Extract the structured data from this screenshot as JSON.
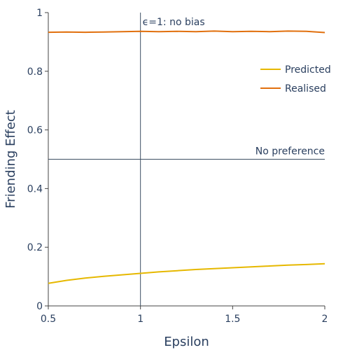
{
  "chart_data": {
    "type": "line",
    "xlabel": "Epsilon",
    "ylabel": "Friending Effect",
    "xlim": [
      0.5,
      2
    ],
    "ylim": [
      0,
      1
    ],
    "x_ticks": [
      "0.5",
      "1",
      "1.5",
      "2"
    ],
    "y_ticks": [
      "0",
      "0.2",
      "0.4",
      "0.6",
      "0.8",
      "1"
    ],
    "grid": false,
    "legend_position": "top-right",
    "series": [
      {
        "name": "Predicted",
        "color": "#e6b800",
        "x": [
          0.5,
          0.6,
          0.7,
          0.8,
          0.9,
          1.0,
          1.1,
          1.2,
          1.3,
          1.4,
          1.5,
          1.6,
          1.7,
          1.8,
          1.9,
          2.0
        ],
        "y": [
          0.077,
          0.087,
          0.095,
          0.101,
          0.106,
          0.111,
          0.116,
          0.12,
          0.124,
          0.127,
          0.13,
          0.133,
          0.136,
          0.139,
          0.141,
          0.144
        ]
      },
      {
        "name": "Realised",
        "color": "#e1700e",
        "x": [
          0.5,
          0.6,
          0.7,
          0.8,
          0.9,
          1.0,
          1.1,
          1.2,
          1.3,
          1.4,
          1.5,
          1.6,
          1.7,
          1.8,
          1.9,
          2.0
        ],
        "y": [
          0.933,
          0.934,
          0.933,
          0.934,
          0.935,
          0.936,
          0.935,
          0.936,
          0.935,
          0.937,
          0.935,
          0.936,
          0.935,
          0.937,
          0.936,
          0.932
        ]
      }
    ],
    "reference_lines": [
      {
        "orientation": "vertical",
        "value": 1,
        "label": "ϵ=1: no bias"
      },
      {
        "orientation": "horizontal",
        "value": 0.5,
        "label": "No preference"
      }
    ]
  }
}
